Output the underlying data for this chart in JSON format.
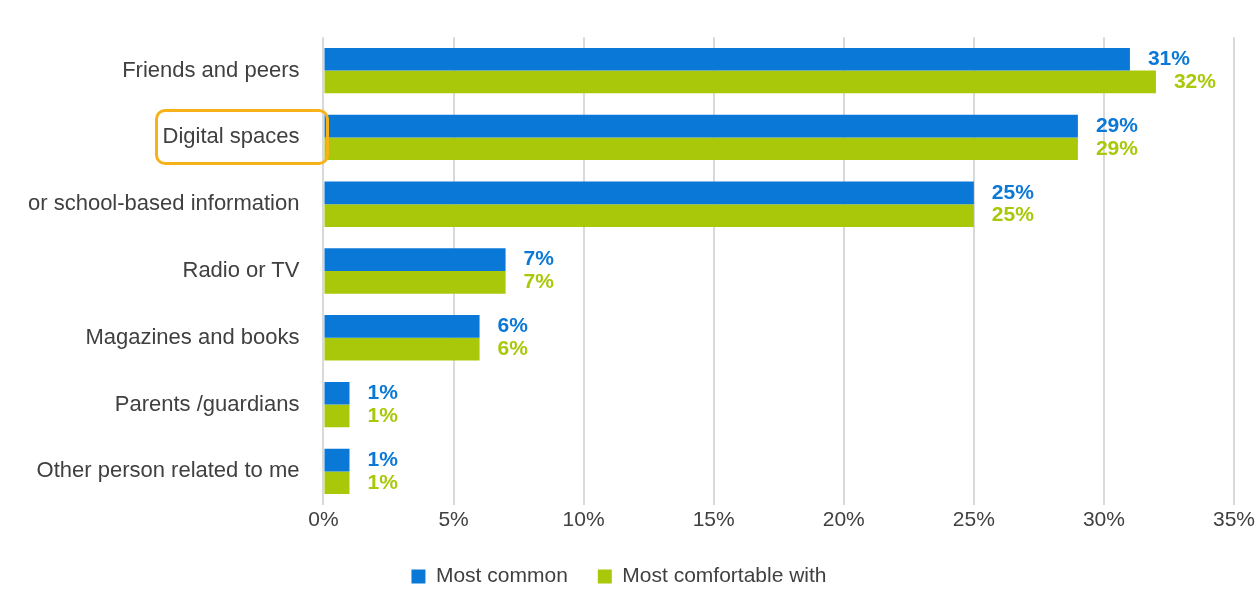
{
  "chart_data": {
    "type": "bar",
    "orientation": "horizontal",
    "categories": [
      "Friends and peers",
      "Digital spaces",
      "or school-based information",
      "Radio or TV",
      "Magazines and books",
      "Parents /guardians",
      "Other person related to me"
    ],
    "series": [
      {
        "name": "Most common",
        "color": "#0a78d7",
        "values": [
          31,
          29,
          25,
          7,
          6,
          1,
          1
        ],
        "value_labels": [
          "31%",
          "29%",
          "25%",
          "7%",
          "6%",
          "1%",
          "1%"
        ]
      },
      {
        "name": "Most comfortable with",
        "color": "#a9c80a",
        "values": [
          32,
          29,
          25,
          7,
          6,
          1,
          1
        ],
        "value_labels": [
          "32%",
          "29%",
          "25%",
          "7%",
          "6%",
          "1%",
          "1%"
        ]
      }
    ],
    "xlim": [
      0,
      35
    ],
    "xticks": [
      {
        "value": 0,
        "label": "0%"
      },
      {
        "value": 5,
        "label": "5%"
      },
      {
        "value": 10,
        "label": "10%"
      },
      {
        "value": 15,
        "label": "15%"
      },
      {
        "value": 20,
        "label": "20%"
      },
      {
        "value": 25,
        "label": "25%"
      },
      {
        "value": 30,
        "label": "30%"
      },
      {
        "value": 35,
        "label": "35%"
      }
    ],
    "grid": "x",
    "legend": "bottom"
  }
}
